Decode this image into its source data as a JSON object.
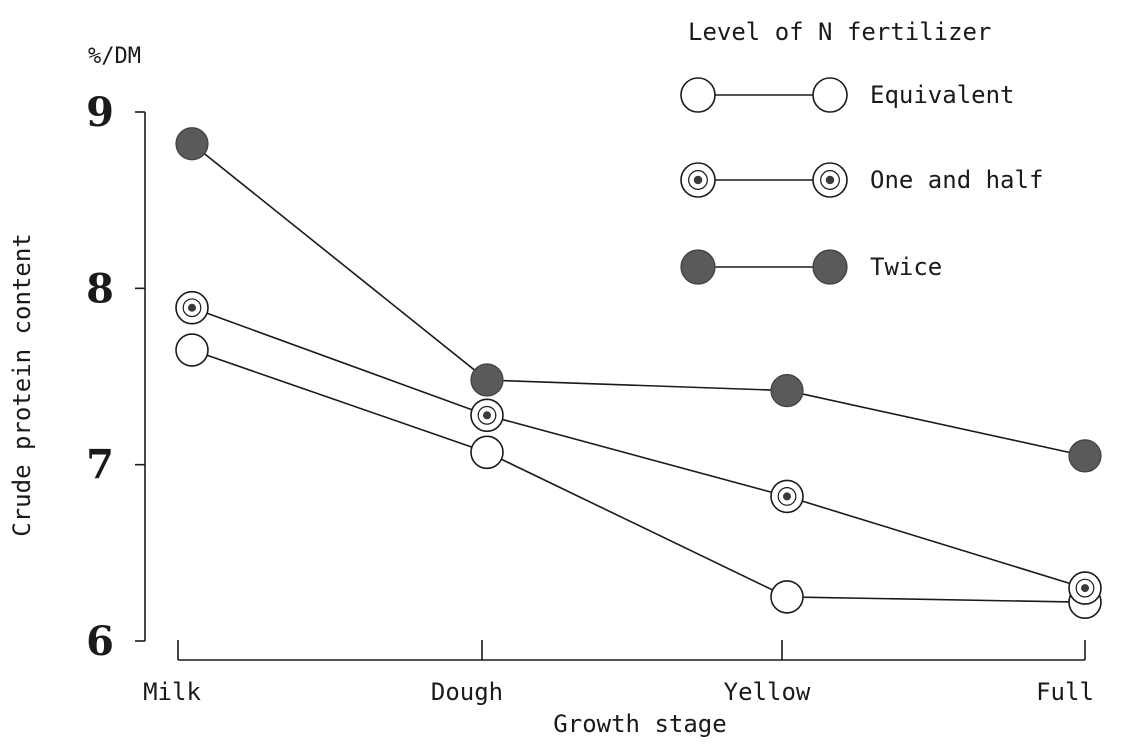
{
  "chart_data": {
    "type": "line",
    "title": "",
    "unit_label": "%/DM",
    "xlabel": "Growth stage",
    "ylabel": "Crude protein content",
    "categories": [
      "Milk",
      "Dough",
      "Yellow",
      "Full"
    ],
    "yticks": [
      "6",
      "7",
      "8",
      "9"
    ],
    "ylim": [
      6,
      9
    ],
    "grid": false,
    "legend_title": "Level of N fertilizer",
    "legend_position": "top-right",
    "series": [
      {
        "name": "Equivalent",
        "marker": "open-circle",
        "values": [
          7.65,
          7.07,
          6.25,
          6.22
        ]
      },
      {
        "name": "One and half",
        "marker": "dotted-circle",
        "values": [
          7.89,
          7.28,
          6.82,
          6.3
        ]
      },
      {
        "name": "Twice",
        "marker": "filled-circle",
        "values": [
          8.82,
          7.48,
          7.42,
          7.05
        ]
      }
    ],
    "colors": {
      "line": "#1a1a1a",
      "filled": "#5a5a5a",
      "dot": "#3a3a3a"
    }
  }
}
